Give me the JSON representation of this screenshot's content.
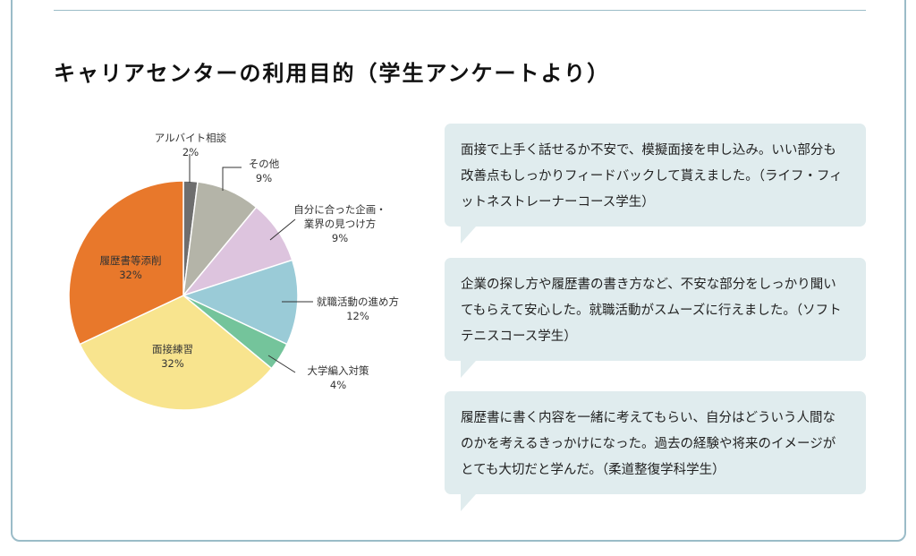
{
  "title": "キャリアセンターの利用目的（学生アンケートより）",
  "chart_data": {
    "type": "pie",
    "title": "キャリアセンターの利用目的（学生アンケートより）",
    "start": "top",
    "direction": "clockwise",
    "slices": [
      {
        "label": "アルバイト相談",
        "value": 2,
        "value_label": "2%",
        "color": "#6e6e6e"
      },
      {
        "label": "その他",
        "value": 9,
        "value_label": "9%",
        "color": "#b4b4a8"
      },
      {
        "label": "自分に合った企画・業界の見つけ方",
        "label_lines": [
          "自分に合った企画・",
          "業界の見つけ方"
        ],
        "value": 9,
        "value_label": "9%",
        "color": "#ddc4de"
      },
      {
        "label": "就職活動の進め方",
        "value": 12,
        "value_label": "12%",
        "color": "#9acbd7"
      },
      {
        "label": "大学編入対策",
        "value": 4,
        "value_label": "4%",
        "color": "#74c49b"
      },
      {
        "label": "面接練習",
        "value": 32,
        "value_label": "32%",
        "color": "#f8e48e"
      },
      {
        "label": "履歴書等添削",
        "value": 32,
        "value_label": "32%",
        "color": "#e8782b"
      }
    ]
  },
  "comments": [
    {
      "text": "面接で上手く話せるか不安で、模擬面接を申し込み。いい部分も改善点もしっかりフィードバックして貰えました。（ライフ・フィットネストレーナーコース学生）"
    },
    {
      "text": "企業の探し方や履歴書の書き方など、不安な部分をしっかり聞いてもらえて安心した。就職活動がスムーズに行えました。（ソフトテニスコース学生）"
    },
    {
      "text": "履歴書に書く内容を一緒に考えてもらい、自分はどういう人間なのかを考えるきっかけになった。過去の経験や将来のイメージがとても大切だと学んだ。（柔道整復学科学生）"
    }
  ]
}
